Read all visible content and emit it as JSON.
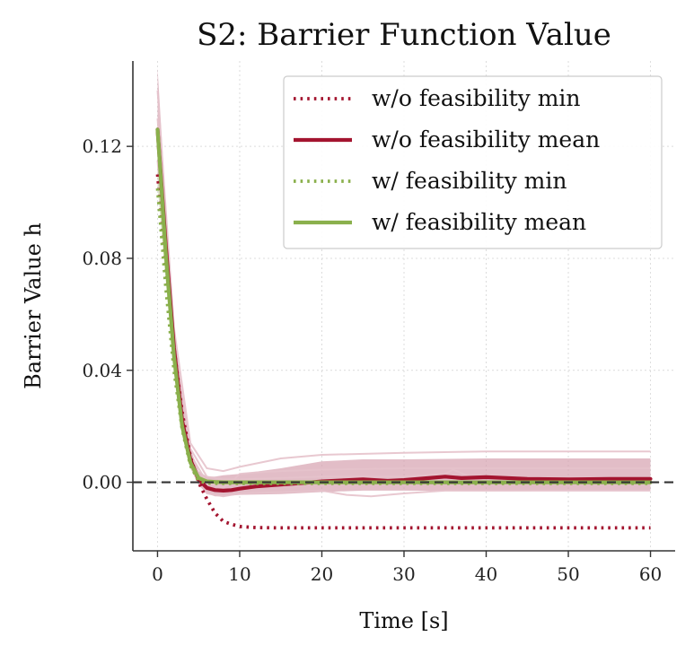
{
  "chart_data": {
    "type": "line",
    "title": "S2: Barrier Function Value",
    "xlabel": "Time [s]",
    "ylabel": "Barrier Value h",
    "xlim": [
      -3.0,
      63.0
    ],
    "ylim": [
      -0.0245,
      0.1505
    ],
    "xticks": [
      0,
      10,
      20,
      30,
      40,
      50,
      60
    ],
    "yticks": [
      0.0,
      0.04,
      0.08,
      0.12
    ],
    "ytick_labels": [
      "0.00",
      "0.04",
      "0.08",
      "0.12"
    ],
    "grid": true,
    "legend_position": "top-right",
    "reference_line": {
      "y": 0.0,
      "style": "dashed",
      "color": "#333333"
    },
    "colors": {
      "wo": "#a3142f",
      "w": "#8ab04c",
      "wo_band": "#d5a1af",
      "wo_runs": "#e6c2cb",
      "w_band": "#c2d6a3"
    },
    "series": [
      {
        "name": "w/o feasibility min",
        "style": "dotted",
        "color": "#a3142f",
        "x": [
          0,
          1,
          2,
          3,
          4,
          5,
          6,
          7,
          8,
          9,
          10,
          12,
          15,
          20,
          30,
          40,
          50,
          60
        ],
        "y": [
          0.11,
          0.078,
          0.048,
          0.025,
          0.009,
          0.0,
          -0.006,
          -0.011,
          -0.014,
          -0.015,
          -0.0158,
          -0.0162,
          -0.0163,
          -0.0163,
          -0.0163,
          -0.0163,
          -0.0163,
          -0.0163
        ]
      },
      {
        "name": "w/o feasibility mean",
        "style": "solid",
        "color": "#a3142f",
        "x": [
          0,
          1,
          2,
          3,
          4,
          5,
          6,
          7,
          8,
          9,
          10,
          12,
          15,
          18,
          20,
          25,
          28,
          30,
          33,
          35,
          37,
          40,
          45,
          50,
          55,
          60
        ],
        "y": [
          0.126,
          0.085,
          0.048,
          0.022,
          0.008,
          0.001,
          -0.002,
          -0.0028,
          -0.003,
          -0.0028,
          -0.0023,
          -0.0015,
          -0.0008,
          -0.0002,
          0.0003,
          0.001,
          0.0005,
          0.0008,
          0.0015,
          0.002,
          0.0015,
          0.0018,
          0.0012,
          0.001,
          0.0012,
          0.0012
        ]
      },
      {
        "name": "w/ feasibility min",
        "style": "dotted",
        "color": "#8ab04c",
        "x": [
          0,
          1,
          2,
          3,
          4,
          5,
          6,
          7,
          8,
          10,
          20,
          30,
          40,
          50,
          60
        ],
        "y": [
          0.105,
          0.07,
          0.04,
          0.019,
          0.006,
          0.0005,
          -0.0003,
          -0.0004,
          -0.0004,
          -0.0004,
          -0.0004,
          -0.0004,
          -0.0004,
          -0.0004,
          -0.0004
        ]
      },
      {
        "name": "w/ feasibility mean",
        "style": "solid",
        "color": "#8ab04c",
        "x": [
          0,
          1,
          2,
          3,
          4,
          5,
          6,
          7,
          8,
          10,
          20,
          30,
          40,
          50,
          60
        ],
        "y": [
          0.126,
          0.082,
          0.045,
          0.02,
          0.007,
          0.0015,
          0.0003,
          0.0001,
          0.0,
          0.0,
          0.0,
          0.0,
          0.0,
          0.0,
          0.0
        ]
      }
    ],
    "bands": [
      {
        "series": "w/o feasibility",
        "color": "#d5a1af",
        "x": [
          0,
          1,
          2,
          3,
          4,
          5,
          6,
          7,
          8,
          10,
          15,
          20,
          25,
          30,
          40,
          50,
          60
        ],
        "lower": [
          0.11,
          0.076,
          0.044,
          0.02,
          0.005,
          -0.001,
          -0.004,
          -0.005,
          -0.005,
          -0.0045,
          -0.0042,
          -0.0035,
          -0.003,
          -0.003,
          -0.0032,
          -0.003,
          -0.003
        ],
        "upper": [
          0.148,
          0.1,
          0.058,
          0.028,
          0.012,
          0.004,
          0.002,
          0.002,
          0.0025,
          0.003,
          0.005,
          0.0075,
          0.0082,
          0.0082,
          0.0085,
          0.0085,
          0.0085
        ]
      },
      {
        "series": "w/ feasibility",
        "color": "#c2d6a3",
        "x": [
          0,
          1,
          2,
          3,
          4,
          5,
          6,
          7,
          8,
          10,
          20,
          30,
          40,
          50,
          60
        ],
        "lower": [
          0.106,
          0.072,
          0.041,
          0.018,
          0.005,
          0.0,
          -0.0004,
          -0.0005,
          -0.0005,
          -0.0005,
          -0.0005,
          -0.0005,
          -0.0005,
          -0.0005,
          -0.0005
        ],
        "upper": [
          0.13,
          0.09,
          0.05,
          0.024,
          0.009,
          0.0025,
          0.0008,
          0.0004,
          0.0003,
          0.0003,
          0.0003,
          0.0003,
          0.0003,
          0.0003,
          0.0003
        ]
      }
    ],
    "runs": [
      {
        "series": "w/o feasibility",
        "x": [
          0,
          2,
          4,
          6,
          8,
          10,
          15,
          20,
          30,
          40,
          50,
          60
        ],
        "y": [
          0.14,
          0.055,
          0.014,
          0.005,
          0.004,
          0.0055,
          0.0085,
          0.0098,
          0.0105,
          0.011,
          0.011,
          0.011
        ]
      },
      {
        "series": "w/o feasibility",
        "x": [
          0,
          2,
          4,
          6,
          8,
          9,
          10,
          12,
          15,
          20,
          30,
          40,
          50,
          60
        ],
        "y": [
          0.12,
          0.05,
          0.01,
          0.0,
          -0.002,
          0.0,
          0.003,
          0.0035,
          0.004,
          0.0045,
          0.005,
          0.005,
          0.005,
          0.005
        ]
      },
      {
        "series": "w/o feasibility",
        "x": [
          0,
          2,
          4,
          6,
          8,
          10,
          15,
          20,
          23,
          26,
          30,
          35,
          40,
          50,
          60
        ],
        "y": [
          0.115,
          0.045,
          0.008,
          -0.004,
          -0.005,
          -0.004,
          -0.0035,
          -0.003,
          -0.0045,
          -0.005,
          -0.004,
          -0.003,
          -0.003,
          -0.003,
          -0.003
        ]
      },
      {
        "series": "w/o feasibility",
        "x": [
          0,
          2,
          4,
          6,
          8,
          10,
          15,
          20,
          25,
          30,
          35,
          36,
          38,
          40,
          50,
          60
        ],
        "y": [
          0.13,
          0.05,
          0.012,
          0.002,
          0.001,
          0.001,
          0.0015,
          0.002,
          0.002,
          0.002,
          0.003,
          0.0045,
          0.002,
          0.0015,
          0.001,
          0.001
        ]
      }
    ]
  }
}
